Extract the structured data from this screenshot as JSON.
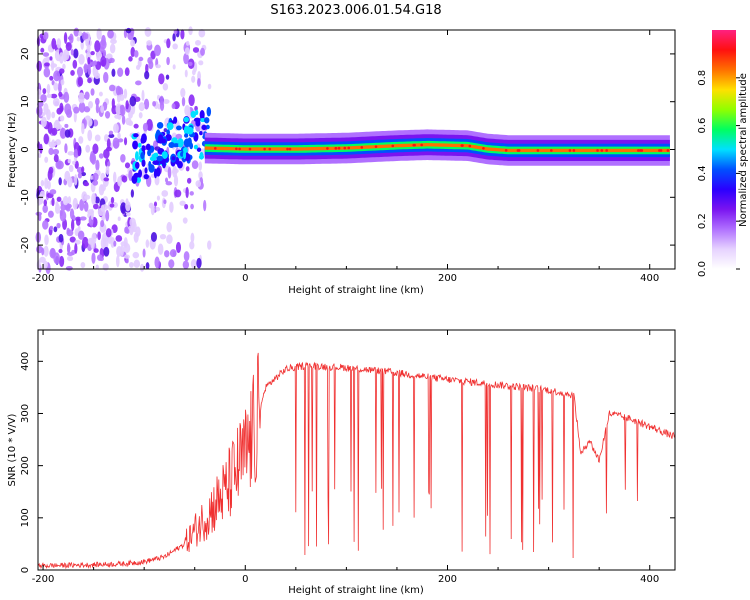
{
  "title": "S163.2023.006.01.54.G18",
  "chart_data": [
    {
      "type": "heatmap",
      "xlabel": "Height of straight line (km)",
      "ylabel": "Frequency (Hz)",
      "xlim": [
        -205,
        425
      ],
      "ylim": [
        -25,
        25
      ],
      "xticks": [
        -200,
        0,
        200,
        400
      ],
      "yticks": [
        -20,
        -10,
        0,
        10,
        20
      ],
      "colorbar": {
        "label": "Normalized spectral amplitude",
        "range": [
          0,
          1
        ],
        "ticks": [
          0.0,
          0.2,
          0.4,
          0.6,
          0.8
        ],
        "colormap": [
          "#ffffff",
          "#e6d2ff",
          "#b070ff",
          "#7a14f0",
          "#2a00ff",
          "#0050ff",
          "#00e0ff",
          "#00ff60",
          "#90ff00",
          "#ffe000",
          "#ff7000",
          "#ff1010",
          "#ff2080"
        ]
      },
      "ridge": {
        "x": [
          -40,
          0,
          50,
          100,
          150,
          180,
          200,
          220,
          240,
          260,
          300,
          350,
          420
        ],
        "frequency": [
          0.3,
          0.1,
          0.1,
          0.3,
          0.8,
          1.0,
          0.9,
          0.8,
          0.1,
          -0.2,
          -0.2,
          -0.2,
          -0.2
        ]
      },
      "grid": false
    },
    {
      "type": "line",
      "xlabel": "Height of straight line (km)",
      "ylabel": "SNR (10 * V/V)",
      "xlim": [
        -205,
        425
      ],
      "ylim": [
        0,
        460
      ],
      "xticks": [
        -200,
        0,
        200,
        400
      ],
      "yticks": [
        0,
        100,
        200,
        300,
        400
      ],
      "series": [
        {
          "color": "#f03030",
          "x": [
            -205,
            -150,
            -120,
            -100,
            -80,
            -60,
            -40,
            -20,
            0,
            10,
            20,
            40,
            60,
            80,
            100,
            120,
            150,
            180,
            200,
            250,
            300,
            325,
            332,
            340,
            350,
            360,
            380,
            400,
            425
          ],
          "values": [
            8,
            10,
            12,
            16,
            25,
            50,
            100,
            150,
            220,
            270,
            350,
            385,
            392,
            390,
            388,
            384,
            378,
            370,
            365,
            355,
            345,
            335,
            220,
            250,
            210,
            300,
            290,
            275,
            255
          ]
        }
      ],
      "grid": false
    }
  ]
}
